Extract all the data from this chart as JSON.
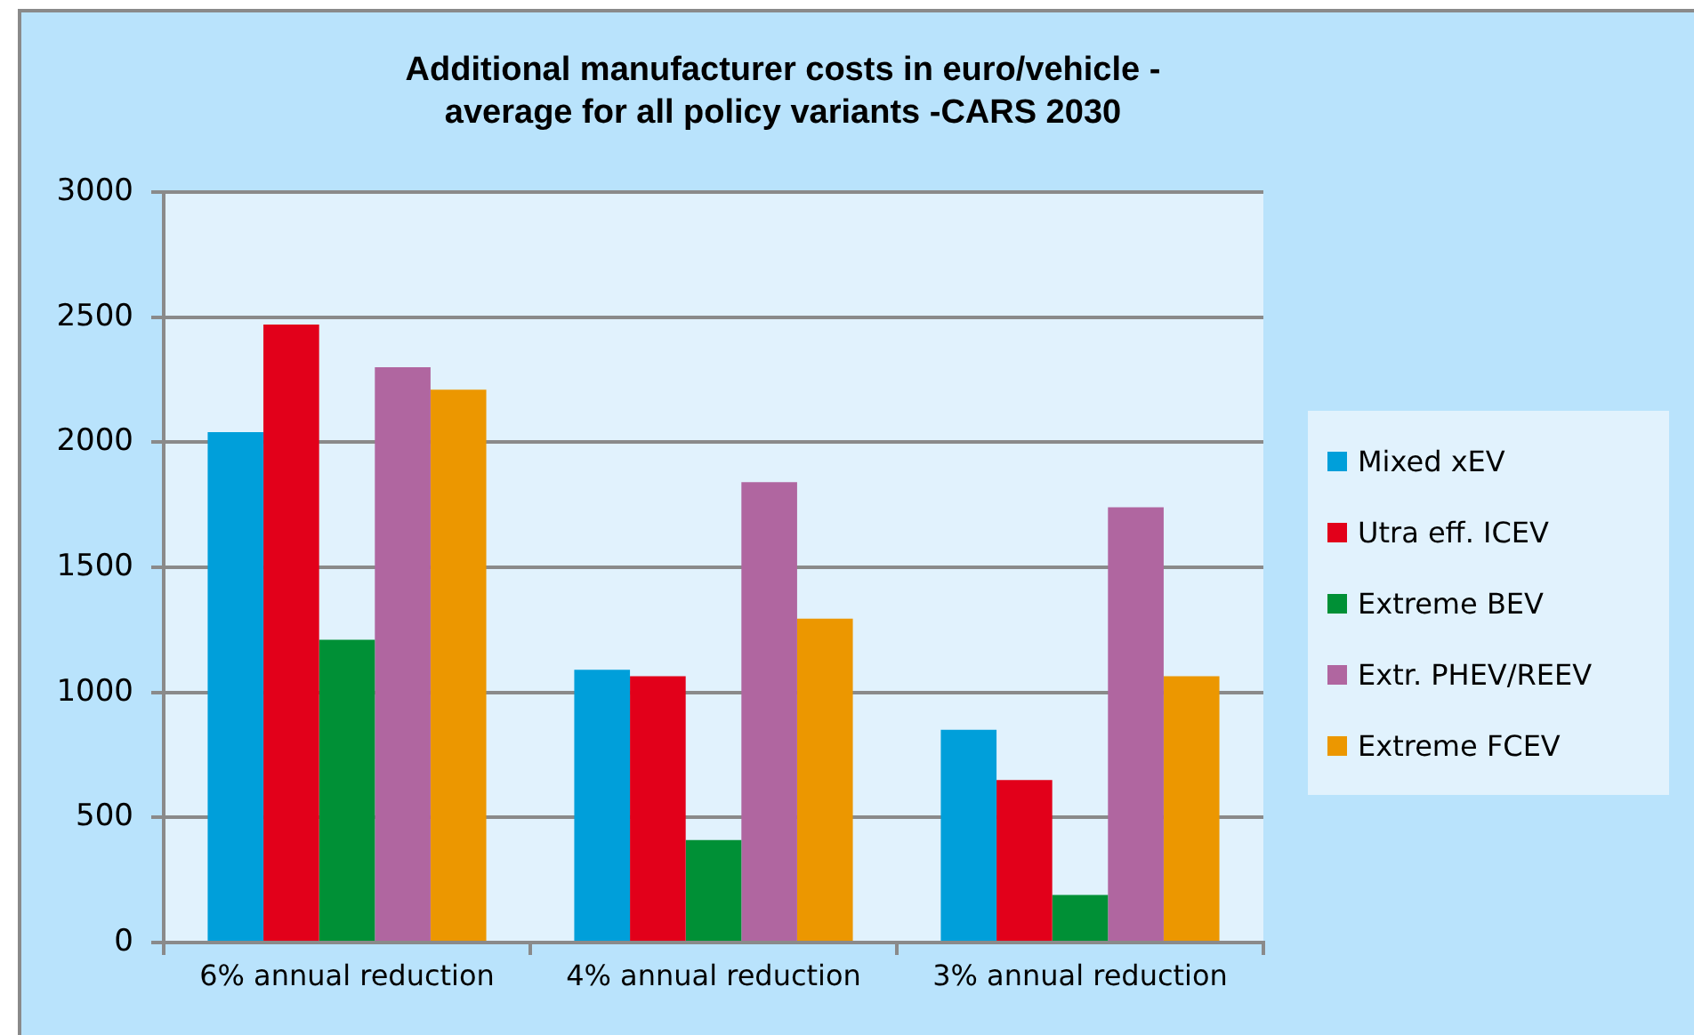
{
  "chart_data": {
    "type": "bar",
    "title": "Additional manufacturer costs in euro/vehicle - average for all policy variants -CARS 2030",
    "categories": [
      "6% annual reduction",
      "4% annual reduction",
      "3% annual reduction"
    ],
    "series": [
      {
        "name": "Mixed xEV",
        "color": "#009fda",
        "values": [
          2040,
          1090,
          850
        ]
      },
      {
        "name": "Utra eff. ICEV",
        "color": "#e2001a",
        "values": [
          2470,
          1065,
          650
        ]
      },
      {
        "name": "Extreme BEV",
        "color": "#009036",
        "values": [
          1210,
          410,
          190
        ]
      },
      {
        "name": "Extr. PHEV/REEV",
        "color": "#b066a0",
        "values": [
          2300,
          1840,
          1740
        ]
      },
      {
        "name": "Extreme FCEV",
        "color": "#ec9700",
        "values": [
          2210,
          1295,
          1065
        ]
      }
    ],
    "ylim": [
      0,
      3000
    ],
    "yticks": [
      0,
      500,
      1000,
      1500,
      2000,
      2500,
      3000
    ],
    "grid": "y",
    "legend": "right"
  }
}
